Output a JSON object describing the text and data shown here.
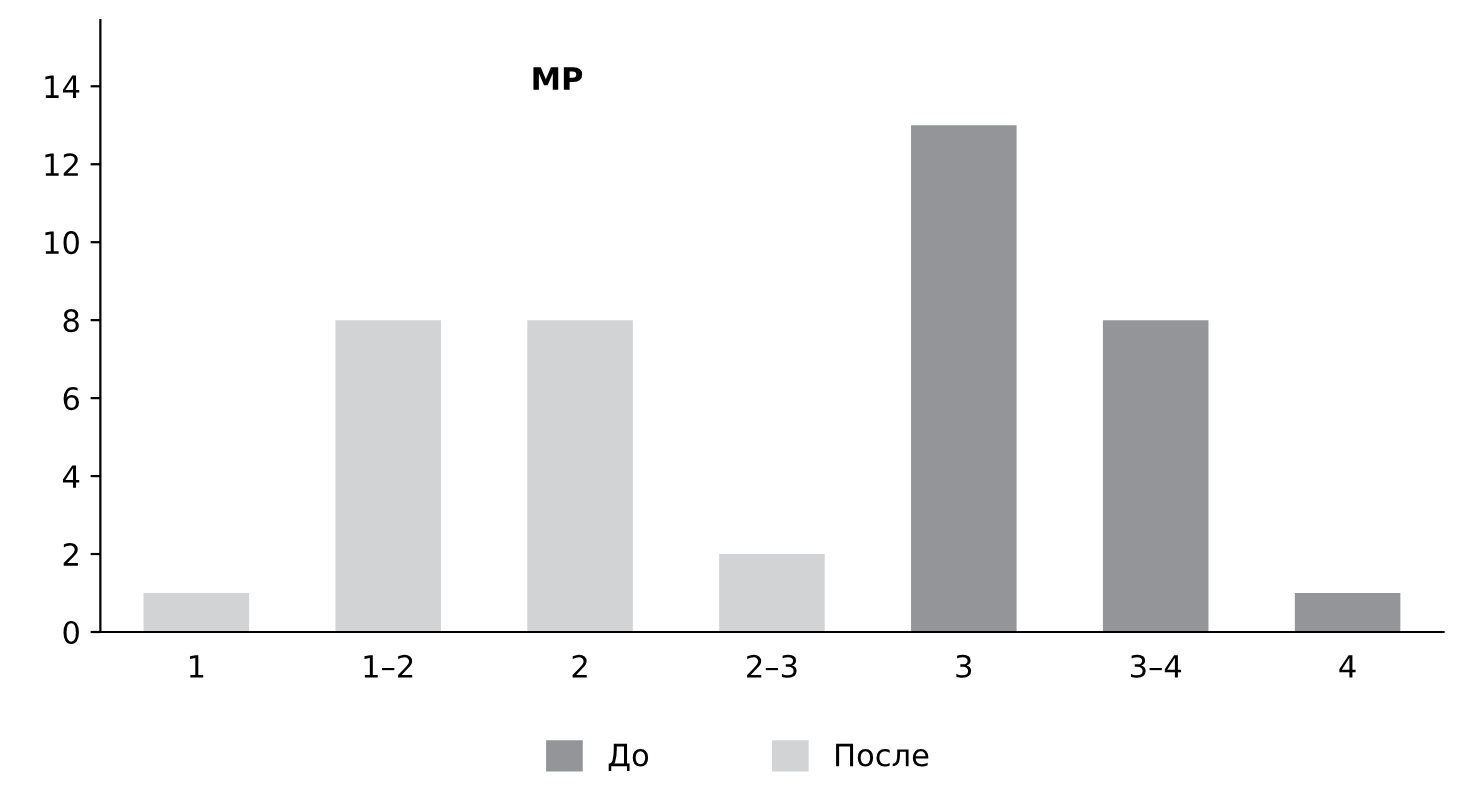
{
  "chart_data": {
    "type": "bar",
    "title": "MP",
    "stacked": true,
    "categories": [
      "1",
      "1–2",
      "2",
      "2–3",
      "3",
      "3–4",
      "4"
    ],
    "series": [
      {
        "name": "До",
        "color": "#939598",
        "values": [
          null,
          null,
          null,
          null,
          13,
          8,
          1
        ]
      },
      {
        "name": "После",
        "color": "#d1d3d4",
        "values": [
          1,
          8,
          8,
          2,
          null,
          null,
          null
        ]
      }
    ],
    "ylim": [
      0,
      15.7
    ],
    "yticks": [
      0,
      2,
      4,
      6,
      8,
      10,
      12,
      14
    ],
    "grid": false,
    "legend": "bottom"
  }
}
